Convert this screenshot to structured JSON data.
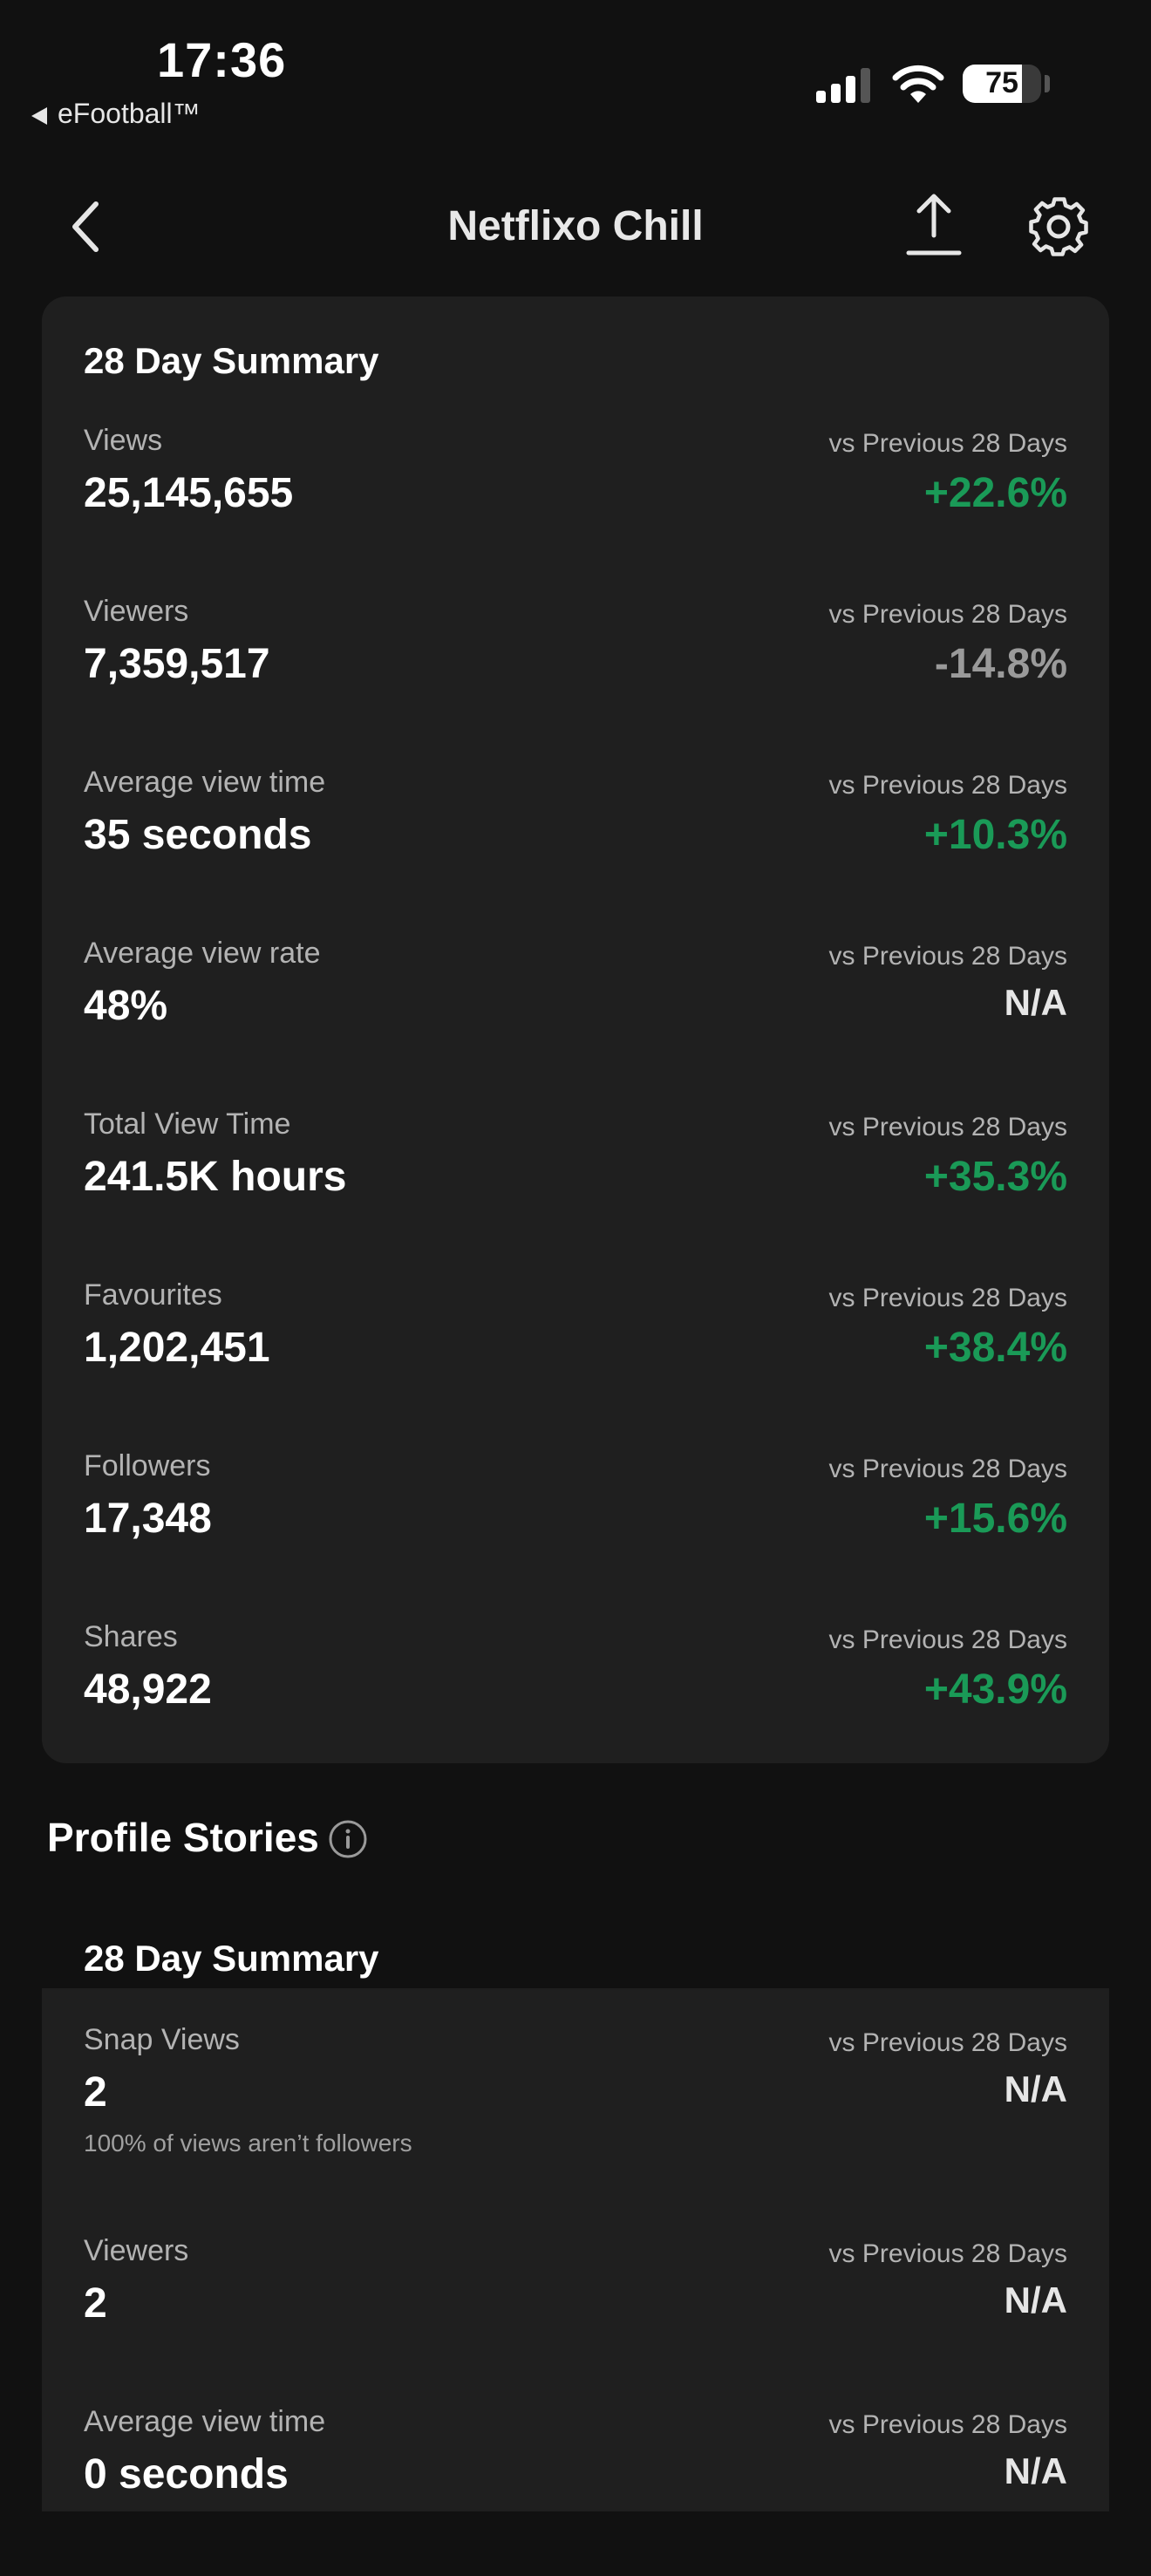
{
  "status": {
    "time": "17:36",
    "back_app": "eFootball™",
    "battery": "75"
  },
  "header": {
    "title": "Netflixo Chill"
  },
  "summary": {
    "title": "28 Day Summary",
    "metrics": [
      {
        "label": "Views",
        "value": "25,145,655",
        "vs": "vs Previous 28 Days",
        "change": "+22.6%"
      },
      {
        "label": "Viewers",
        "value": "7,359,517",
        "vs": "vs Previous 28 Days",
        "change": "-14.8%"
      },
      {
        "label": "Average view time",
        "value": "35 seconds",
        "vs": "vs Previous 28 Days",
        "change": "+10.3%"
      },
      {
        "label": "Average view rate",
        "value": "48%",
        "vs": "vs Previous 28 Days",
        "change": "N/A"
      },
      {
        "label": "Total View Time",
        "value": "241.5K hours",
        "vs": "vs Previous 28 Days",
        "change": "+35.3%"
      },
      {
        "label": "Favourites",
        "value": "1,202,451",
        "vs": "vs Previous 28 Days",
        "change": "+38.4%"
      },
      {
        "label": "Followers",
        "value": "17,348",
        "vs": "vs Previous 28 Days",
        "change": "+15.6%"
      },
      {
        "label": "Shares",
        "value": "48,922",
        "vs": "vs Previous 28 Days",
        "change": "+43.9%"
      }
    ]
  },
  "profile_stories": {
    "title": "Profile Stories",
    "summary_title": "28 Day Summary",
    "metrics": [
      {
        "label": "Snap Views",
        "value": "2",
        "vs": "vs Previous 28 Days",
        "change": "N/A",
        "note": "100% of views aren’t followers"
      },
      {
        "label": "Viewers",
        "value": "2",
        "vs": "vs Previous 28 Days",
        "change": "N/A"
      },
      {
        "label": "Average view time",
        "value": "0 seconds",
        "vs": "vs Previous 28 Days",
        "change": "N/A"
      }
    ]
  },
  "colors": {
    "positive": "#1a9a57",
    "negative": "#9a9a9a",
    "card": "#1f1f1f",
    "background": "#111111"
  }
}
